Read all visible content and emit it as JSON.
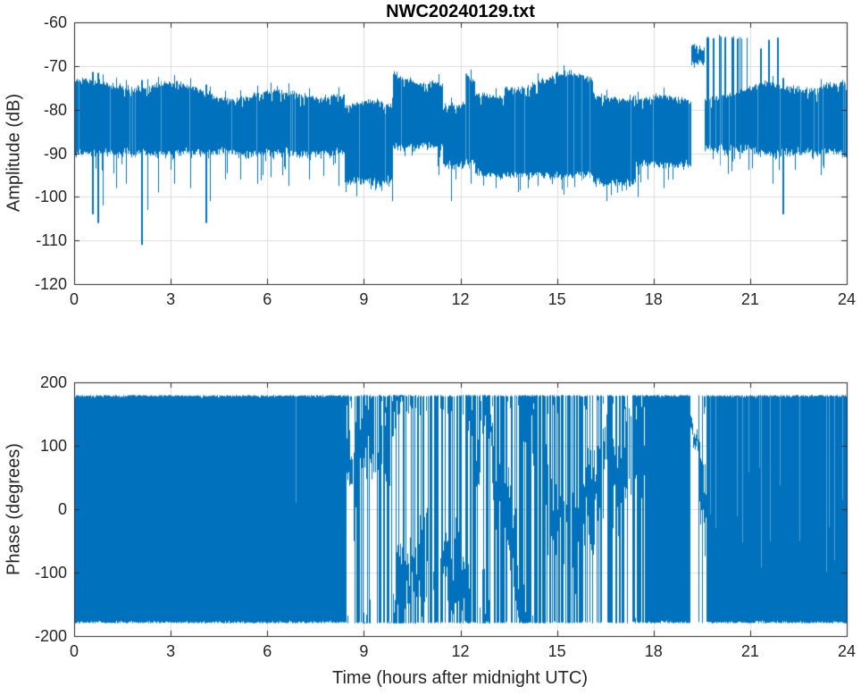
{
  "figure": {
    "title": "NWC20240129.txt",
    "background": "#ffffff",
    "line_color": "#0072bd",
    "line_color_light": "#4f9fd6",
    "axis_color": "#262626",
    "grid_color": "#dcdcdc",
    "label_color": "#262626"
  },
  "chart_data": [
    {
      "type": "line",
      "subplot": "amplitude",
      "title": "NWC20240129.txt",
      "xlabel": "",
      "ylabel": "Amplitude (dB)",
      "xlim": [
        0,
        24
      ],
      "ylim": [
        -120,
        -60
      ],
      "xticks": [
        0,
        3,
        6,
        9,
        12,
        15,
        18,
        21,
        24
      ],
      "yticks": [
        -60,
        -70,
        -80,
        -90,
        -100,
        -110,
        -120
      ],
      "grid": true,
      "legend": "none",
      "series_name": "amplitude-vs-time",
      "series_color": "#0072bd",
      "envelope_segments": [
        {
          "t0": 0,
          "t1": 8.4,
          "top": -74.5,
          "top2": -77,
          "bottom": -90,
          "tail": -97,
          "tail_prob": 0.12
        },
        {
          "t0": 8.4,
          "t1": 9.9,
          "top": -80,
          "top2": -80,
          "bottom": -96.5,
          "tail": -100,
          "tail_prob": 0.1
        },
        {
          "t0": 9.9,
          "t1": 11.45,
          "top": -72.5,
          "top2": -73,
          "bottom": -88.5,
          "tail": -94,
          "tail_prob": 0.12
        },
        {
          "t0": 11.45,
          "t1": 12.15,
          "top": -79,
          "top2": -79,
          "bottom": -93,
          "tail": -97,
          "tail_prob": 0.1
        },
        {
          "t0": 12.15,
          "t1": 12.45,
          "top": -72,
          "top2": -74,
          "bottom": -92,
          "tail": -97,
          "tail_prob": 0.25
        },
        {
          "t0": 12.45,
          "t1": 13.35,
          "top": -77,
          "top2": -76,
          "bottom": -95,
          "tail": -98,
          "tail_prob": 0.12
        },
        {
          "t0": 13.35,
          "t1": 16.1,
          "top": -74,
          "top2": -73.5,
          "bottom": -95,
          "tail": -99,
          "tail_prob": 0.15
        },
        {
          "t0": 16.1,
          "t1": 17.45,
          "top": -77,
          "top2": -77,
          "bottom": -97,
          "tail": -100.5,
          "tail_prob": 0.12
        },
        {
          "t0": 17.45,
          "t1": 19.15,
          "top": -78,
          "top2": -77,
          "bottom": -92.5,
          "tail": -97,
          "tail_prob": 0.1
        },
        {
          "t0": 19.15,
          "t1": 19.58,
          "top": -63.5,
          "top2": -64.5,
          "bottom": -69.5,
          "tail": -72,
          "tail_prob": 0.06
        },
        {
          "t0": 19.58,
          "t1": 21.1,
          "top": -76,
          "top2": -76,
          "bottom": -89,
          "tail": -95,
          "tail_prob": 0.1,
          "keyed": true,
          "spike_top": -63.5,
          "spike_prob": 0.13
        },
        {
          "t0": 21.1,
          "t1": 24.01,
          "top": -75.5,
          "top2": -75,
          "bottom": -90,
          "tail": -95,
          "tail_prob": 0.08
        }
      ],
      "down_spikes": [
        [
          0.55,
          -104
        ],
        [
          0.72,
          -106
        ],
        [
          0.9,
          -102
        ],
        [
          1.3,
          -98
        ],
        [
          1.62,
          -97
        ],
        [
          2.07,
          -111
        ],
        [
          2.28,
          -103
        ],
        [
          2.6,
          -99
        ],
        [
          3.1,
          -97
        ],
        [
          3.6,
          -98
        ],
        [
          4.08,
          -106
        ],
        [
          4.22,
          -101
        ],
        [
          4.7,
          -96
        ],
        [
          5.15,
          -96
        ],
        [
          5.7,
          -97
        ],
        [
          6.1,
          -95.5
        ],
        [
          6.66,
          -97.5
        ],
        [
          7.3,
          -96
        ],
        [
          8.2,
          -97.5
        ],
        [
          9.87,
          -101
        ],
        [
          11.32,
          -95
        ],
        [
          11.7,
          -101
        ],
        [
          12.32,
          -97
        ],
        [
          13.1,
          -98
        ],
        [
          14.4,
          -97.5
        ],
        [
          15.2,
          -99.5
        ],
        [
          16.55,
          -101
        ],
        [
          17.52,
          -100
        ],
        [
          18.3,
          -98
        ],
        [
          21.7,
          -97
        ],
        [
          22.0,
          -104
        ],
        [
          23.2,
          -95
        ]
      ],
      "up_spikes": [
        [
          21.3,
          -66
        ],
        [
          21.55,
          -64
        ],
        [
          21.84,
          -63.5
        ]
      ]
    },
    {
      "type": "line",
      "subplot": "phase",
      "title": "",
      "xlabel": "Time (hours after midnight UTC)",
      "ylabel": "Phase (degrees)",
      "xlim": [
        0,
        24
      ],
      "ylim": [
        -200,
        200
      ],
      "xticks": [
        0,
        3,
        6,
        9,
        12,
        15,
        18,
        21,
        24
      ],
      "yticks": [
        200,
        100,
        0,
        -100,
        -200
      ],
      "grid": true,
      "legend": "none",
      "series_name": "phase-vs-time",
      "series_color": "#0072bd",
      "data_range": [
        -180,
        180
      ],
      "phase_segments": [
        {
          "t0": 0,
          "t1": 8.45,
          "mode": "solid",
          "p": 0.998
        },
        {
          "t0": 8.45,
          "t1": 8.78,
          "mode": "mix",
          "p": 0.08
        },
        {
          "t0": 8.78,
          "t1": 9.12,
          "mode": "mix",
          "p": 0.42
        },
        {
          "t0": 9.12,
          "t1": 9.45,
          "mode": "mix",
          "p": 0.18
        },
        {
          "t0": 9.45,
          "t1": 9.85,
          "mode": "mix",
          "p": 0.5
        },
        {
          "t0": 9.85,
          "t1": 10.2,
          "mode": "mix",
          "p": 0.22
        },
        {
          "t0": 10.2,
          "t1": 10.7,
          "mode": "mix",
          "p": 0.48
        },
        {
          "t0": 10.7,
          "t1": 11.15,
          "mode": "mix",
          "p": 0.28
        },
        {
          "t0": 11.15,
          "t1": 12.5,
          "mode": "mix",
          "p": 0.45
        },
        {
          "t0": 12.5,
          "t1": 13.2,
          "mode": "mix",
          "p": 0.55
        },
        {
          "t0": 13.2,
          "t1": 13.65,
          "mode": "mix",
          "p": 0.32
        },
        {
          "t0": 13.65,
          "t1": 14.3,
          "mode": "mix",
          "p": 0.58
        },
        {
          "t0": 14.3,
          "t1": 15.2,
          "mode": "mix",
          "p": 0.48
        },
        {
          "t0": 15.2,
          "t1": 16.1,
          "mode": "mix",
          "p": 0.62
        },
        {
          "t0": 16.1,
          "t1": 16.8,
          "mode": "mix",
          "p": 0.5
        },
        {
          "t0": 16.8,
          "t1": 17.45,
          "mode": "mix",
          "p": 0.42
        },
        {
          "t0": 17.45,
          "t1": 17.8,
          "mode": "mix",
          "p": 0.68
        },
        {
          "t0": 17.8,
          "t1": 19.14,
          "mode": "solid",
          "p": 0.985
        },
        {
          "t0": 19.14,
          "t1": 19.38,
          "mode": "trace",
          "p": 0,
          "start": 170
        },
        {
          "t0": 19.38,
          "t1": 19.62,
          "mode": "mix",
          "p": 0.4
        },
        {
          "t0": 19.62,
          "t1": 24.01,
          "mode": "solid",
          "p": 0.94
        }
      ]
    }
  ]
}
